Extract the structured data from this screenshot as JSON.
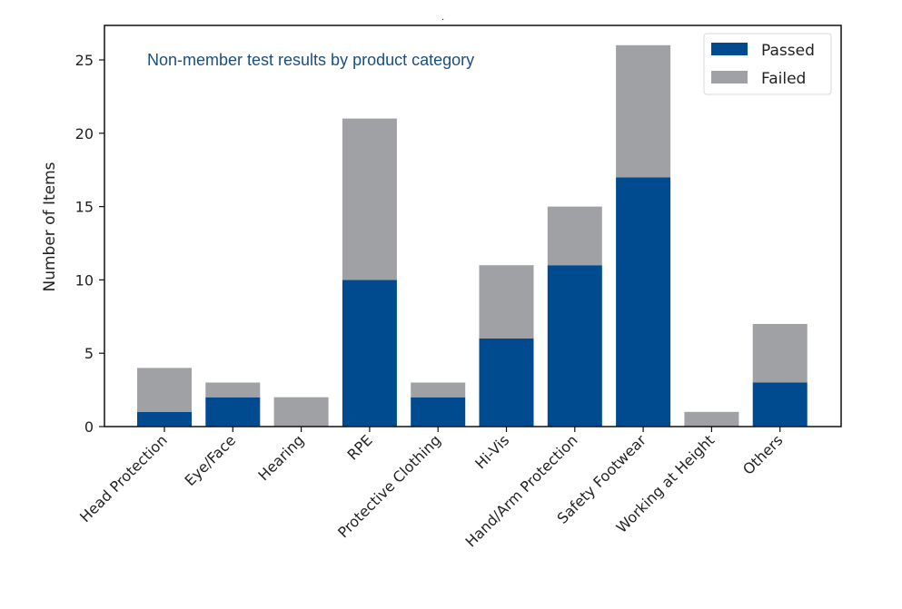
{
  "chart_data": {
    "type": "bar",
    "stacked": true,
    "title": "Non-member test results by product category",
    "xlabel": "",
    "ylabel": "Number of Items",
    "ylim": [
      0,
      27.3
    ],
    "yticks": [
      0,
      5,
      10,
      15,
      20,
      25
    ],
    "grid": false,
    "legend_position": "upper right",
    "categories": [
      "Head Protection",
      "Eye/Face",
      "Hearing",
      "RPE",
      "Protective Clothing",
      "Hi-Vis",
      "Hand/Arm Protection",
      "Safety Footwear",
      "Working at Height",
      "Others"
    ],
    "series": [
      {
        "name": "Passed",
        "color": "#004a8f",
        "values": [
          1,
          2,
          0,
          10,
          2,
          6,
          11,
          17,
          0,
          3
        ]
      },
      {
        "name": "Failed",
        "color": "#a0a1a5",
        "values": [
          3,
          1,
          2,
          11,
          1,
          5,
          4,
          9,
          1,
          4
        ]
      }
    ],
    "title_color": "#1a4f7f"
  }
}
